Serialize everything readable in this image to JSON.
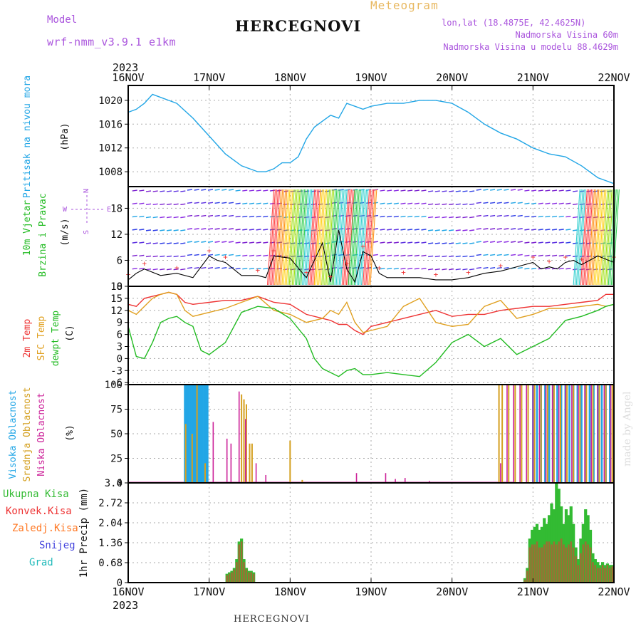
{
  "header": {
    "model_label": "Model",
    "model_name": "wrf-nmm_v3.9.1  e1km",
    "title": "HERCEGNOVI",
    "product": "Meteogram",
    "coords": "lon,lat (18.4875E, 42.4625N)",
    "altitude": "Nadmorska Visina 60m",
    "model_altitude": "Nadmorska Visina u modelu 88.4629m"
  },
  "footer": {
    "station": "HERCEGNOVI",
    "credit": "made by Angel"
  },
  "colors": {
    "pressure": "#22a6e6",
    "temp2m": "#ee3333",
    "sfc": "#e0a020",
    "dewpt": "#22bb22",
    "cloud_high": "#22a6e6",
    "cloud_mid": "#d4a020",
    "cloud_low": "#cc2299",
    "precip_total": "#33bb33",
    "precip_conv": "#ee3333",
    "precip_frozen": "#ff7722",
    "snow": "#4444dd",
    "graupel": "#22bbbb",
    "model": "#aa55dd",
    "meteogram": "#e8b860"
  },
  "chart_data": [
    {
      "type": "line",
      "panel": "pressure",
      "ylabel": [
        "Pritisak na nivou mora",
        "(hPa)"
      ],
      "yticks": [
        1008,
        1012,
        1016,
        1020
      ],
      "ylim": [
        1005.5,
        1022.5
      ],
      "x_ticks": [
        "16NOV",
        "17NOV",
        "18NOV",
        "19NOV",
        "20NOV",
        "21NOV",
        "22NOV"
      ],
      "top_year": "2023",
      "series": [
        {
          "x": [
            0,
            0.1,
            0.2,
            0.3,
            0.4,
            0.5,
            0.6,
            0.8,
            1.0,
            1.2,
            1.4,
            1.6,
            1.7,
            1.8,
            1.9,
            2.0,
            2.1,
            2.2,
            2.3,
            2.4,
            2.5,
            2.6,
            2.7,
            2.8,
            2.9,
            3.0,
            3.2,
            3.4,
            3.6,
            3.8,
            4.0,
            4.2,
            4.4,
            4.6,
            4.8,
            5.0,
            5.2,
            5.4,
            5.6,
            5.8,
            6.0
          ],
          "y": [
            1018,
            1018.5,
            1019.5,
            1021,
            1020.5,
            1020,
            1019.5,
            1017,
            1014,
            1011,
            1009,
            1008,
            1008,
            1008.5,
            1009.5,
            1009.5,
            1010.5,
            1013.5,
            1015.5,
            1016.5,
            1017.5,
            1017,
            1019.5,
            1019,
            1018.5,
            1019,
            1019.5,
            1019.5,
            1020,
            1020,
            1019.5,
            1018,
            1016,
            1014.5,
            1013.5,
            1012,
            1011,
            1010.5,
            1009,
            1007,
            1006
          ]
        }
      ]
    },
    {
      "type": "line",
      "panel": "wind",
      "ylabel": [
        "10m Vjetar",
        "Brzina i Pravac",
        "(m/s)"
      ],
      "compass": [
        "N",
        "W",
        "E",
        "S"
      ],
      "yticks": [
        0,
        6,
        12,
        18
      ],
      "ylim": [
        0,
        23
      ],
      "series": [
        {
          "name": "speed",
          "x": [
            0,
            0.1,
            0.2,
            0.4,
            0.6,
            0.8,
            1.0,
            1.1,
            1.2,
            1.4,
            1.6,
            1.7,
            1.8,
            2.0,
            2.2,
            2.4,
            2.5,
            2.6,
            2.7,
            2.8,
            2.9,
            3.0,
            3.1,
            3.2,
            3.4,
            3.6,
            3.8,
            4.0,
            4.2,
            4.4,
            4.6,
            4.8,
            5.0,
            5.1,
            5.2,
            5.3,
            5.4,
            5.5,
            5.6,
            5.8,
            6.0
          ],
          "y": [
            1.5,
            3,
            4,
            2.5,
            3,
            2,
            7,
            6,
            5.5,
            2.5,
            2.5,
            2,
            7,
            6.5,
            2,
            10,
            1,
            13,
            4,
            1,
            8,
            7,
            3,
            2,
            2,
            2,
            1.5,
            1.5,
            2,
            3,
            3.5,
            4.5,
            5.5,
            4,
            4.5,
            4,
            5.5,
            6,
            5,
            7,
            5.5
          ]
        }
      ]
    },
    {
      "type": "line",
      "panel": "temperature",
      "ylabel": [
        "2m Temp",
        "SFC Temp",
        "dewpt Temp",
        "(C)"
      ],
      "yticks": [
        -6,
        -3,
        0,
        3,
        6,
        9,
        12,
        15,
        18
      ],
      "ylim": [
        -6.5,
        18
      ],
      "series": [
        {
          "name": "2m Temp",
          "x": [
            0,
            0.1,
            0.2,
            0.3,
            0.4,
            0.5,
            0.6,
            0.7,
            0.8,
            1.0,
            1.2,
            1.4,
            1.6,
            1.8,
            2.0,
            2.2,
            2.4,
            2.5,
            2.6,
            2.7,
            2.8,
            2.9,
            3.0,
            3.2,
            3.4,
            3.6,
            3.8,
            4.0,
            4.2,
            4.4,
            4.6,
            4.8,
            5.0,
            5.2,
            5.4,
            5.6,
            5.8,
            5.9,
            6.0
          ],
          "y": [
            13.5,
            13,
            15,
            15.5,
            16,
            16.5,
            16,
            14,
            13.5,
            14,
            14.5,
            14.5,
            15.5,
            14,
            13.5,
            11,
            10,
            9.5,
            8.5,
            8.5,
            7,
            6,
            8,
            9,
            10,
            11,
            12,
            10.5,
            11,
            11,
            12,
            12.5,
            13,
            13,
            13.5,
            14,
            14.5,
            16,
            16
          ]
        },
        {
          "name": "SFC Temp",
          "x": [
            0,
            0.1,
            0.2,
            0.3,
            0.4,
            0.5,
            0.6,
            0.7,
            0.8,
            1.0,
            1.2,
            1.4,
            1.6,
            1.8,
            2.0,
            2.2,
            2.4,
            2.5,
            2.6,
            2.7,
            2.8,
            2.9,
            3.0,
            3.2,
            3.4,
            3.6,
            3.8,
            4.0,
            4.2,
            4.4,
            4.6,
            4.8,
            5.0,
            5.2,
            5.4,
            5.6,
            5.8,
            5.9,
            6.0
          ],
          "y": [
            12,
            11,
            13,
            15,
            16,
            16.5,
            16,
            12,
            10.5,
            11.5,
            12.5,
            14,
            15.5,
            12,
            11,
            9,
            10,
            12,
            11,
            14,
            9,
            6.5,
            7,
            8,
            13,
            15,
            9,
            8,
            8.5,
            13,
            14.5,
            10,
            11,
            12.5,
            12.5,
            13,
            13.5,
            13,
            13.5
          ]
        },
        {
          "name": "dewpt Temp",
          "x": [
            0,
            0.1,
            0.2,
            0.3,
            0.4,
            0.5,
            0.6,
            0.7,
            0.8,
            0.9,
            1.0,
            1.2,
            1.4,
            1.6,
            1.8,
            2.0,
            2.2,
            2.3,
            2.4,
            2.5,
            2.6,
            2.7,
            2.8,
            2.9,
            3.0,
            3.2,
            3.4,
            3.6,
            3.8,
            4.0,
            4.2,
            4.4,
            4.6,
            4.8,
            5.0,
            5.2,
            5.4,
            5.6,
            5.8,
            5.9,
            6.0
          ],
          "y": [
            8,
            0.5,
            0,
            4,
            9,
            10,
            10.5,
            9,
            8,
            2,
            1,
            4,
            11.5,
            13,
            12.5,
            10,
            5,
            0,
            -2.5,
            -3.5,
            -4.5,
            -3,
            -2.5,
            -4,
            -4,
            -3.5,
            -4,
            -4.5,
            -1,
            4,
            6,
            3,
            5,
            1,
            3,
            5,
            9.5,
            10.5,
            12,
            13,
            13.5
          ]
        }
      ]
    },
    {
      "type": "bar",
      "panel": "clouds",
      "ylabel": [
        "Visoka Oblacnost",
        "Srednja Oblacnost",
        "Niska Oblacnost",
        "(%)"
      ],
      "yticks": [
        0,
        25,
        50,
        75,
        100
      ],
      "ylim": [
        0,
        100
      ],
      "series": [
        {
          "name": "Visoka Oblacnost",
          "x": [
            0.7,
            0.72,
            0.74,
            0.76,
            0.78,
            0.8,
            0.82,
            0.84,
            0.86,
            0.88,
            0.9,
            0.92,
            0.94,
            0.96,
            0.98,
            5.0,
            5.05,
            5.1,
            5.15,
            5.2,
            5.25,
            5.3,
            5.35,
            5.4,
            5.45,
            5.5,
            5.55,
            5.6,
            5.65,
            5.7,
            5.75,
            5.8,
            5.85,
            5.9,
            5.95
          ],
          "y": [
            100,
            100,
            100,
            100,
            100,
            100,
            100,
            100,
            100,
            100,
            100,
            100,
            100,
            100,
            100,
            100,
            100,
            100,
            100,
            100,
            100,
            100,
            100,
            100,
            100,
            100,
            100,
            100,
            100,
            100,
            100,
            100,
            100,
            100,
            100
          ]
        },
        {
          "name": "Srednja Oblacnost",
          "x": [
            0.71,
            0.79,
            0.85,
            0.95,
            1.4,
            1.43,
            1.46,
            1.5,
            1.53,
            2.0,
            2.15,
            4.58,
            4.62,
            4.7,
            4.78,
            4.86,
            4.94,
            5.02,
            5.1,
            5.18,
            5.26,
            5.34,
            5.42,
            5.5,
            5.58,
            5.66,
            5.74,
            5.82,
            5.9,
            5.98
          ],
          "y": [
            60,
            50,
            100,
            20,
            90,
            85,
            80,
            40,
            40,
            43,
            3,
            100,
            100,
            100,
            100,
            100,
            100,
            100,
            100,
            100,
            100,
            100,
            100,
            100,
            100,
            100,
            100,
            100,
            100,
            100
          ]
        },
        {
          "name": "Niska Oblacnost",
          "x": [
            1.05,
            1.22,
            1.27,
            1.37,
            1.45,
            1.58,
            1.7,
            2.82,
            3.18,
            3.3,
            3.42,
            3.72,
            4.6,
            4.68,
            4.76,
            4.84,
            4.92,
            5.0,
            5.08,
            5.16,
            5.24,
            5.32,
            5.4,
            5.48,
            5.56,
            5.64,
            5.72,
            5.8,
            5.88,
            5.96
          ],
          "y": [
            62,
            45,
            40,
            93,
            65,
            20,
            8,
            10,
            10,
            4,
            5,
            2,
            20,
            100,
            100,
            100,
            100,
            100,
            100,
            100,
            100,
            100,
            100,
            100,
            100,
            100,
            100,
            100,
            100,
            100
          ]
        }
      ]
    },
    {
      "type": "bar",
      "panel": "precip",
      "ylabel": "1hr Precip (mm)",
      "legend": [
        "Ukupna Kisa",
        "Konvek.Kisa",
        "Zaledj.Kisa",
        "Snijeg",
        "Grad"
      ],
      "yticks": [
        "0",
        "0.68",
        "1.36",
        "2.04",
        "2.72",
        "3.4"
      ],
      "ylim": [
        0,
        3.4
      ],
      "x_ticks": [
        "16NOV",
        "17NOV",
        "18NOV",
        "19NOV",
        "20NOV",
        "21NOV",
        "22NOV"
      ],
      "bottom_year": "2023",
      "series": [
        {
          "name": "Ukupna Kisa",
          "x": [
            1.22,
            1.25,
            1.28,
            1.31,
            1.34,
            1.37,
            1.4,
            1.43,
            1.46,
            1.49,
            1.52,
            1.55,
            4.9,
            4.93,
            4.96,
            4.99,
            5.02,
            5.05,
            5.08,
            5.11,
            5.14,
            5.17,
            5.2,
            5.23,
            5.26,
            5.29,
            5.32,
            5.35,
            5.38,
            5.41,
            5.44,
            5.47,
            5.5,
            5.53,
            5.56,
            5.59,
            5.62,
            5.65,
            5.68,
            5.71,
            5.74,
            5.77,
            5.8,
            5.83,
            5.86,
            5.89,
            5.92,
            5.95,
            5.98
          ],
          "y": [
            0.3,
            0.35,
            0.4,
            0.5,
            0.8,
            1.4,
            1.5,
            0.8,
            0.5,
            0.4,
            0.4,
            0.35,
            0.15,
            0.5,
            1.5,
            1.8,
            1.9,
            2.0,
            1.8,
            1.9,
            2.2,
            2.0,
            2.3,
            2.7,
            2.5,
            3.4,
            3.2,
            2.6,
            2.0,
            2.5,
            2.3,
            2.6,
            2.0,
            1.2,
            0.8,
            1.5,
            2.0,
            2.5,
            2.3,
            1.8,
            1.0,
            0.8,
            0.7,
            0.6,
            0.7,
            0.6,
            0.65,
            0.6,
            0.6
          ]
        },
        {
          "name": "Konvek.Kisa",
          "x": [
            1.22,
            1.25,
            1.28,
            1.31,
            1.34,
            1.37,
            1.4,
            1.43,
            1.46,
            1.49,
            1.52,
            1.55,
            4.9,
            4.93,
            4.96,
            4.99,
            5.02,
            5.05,
            5.08,
            5.11,
            5.14,
            5.17,
            5.2,
            5.23,
            5.26,
            5.29,
            5.32,
            5.35,
            5.38,
            5.41,
            5.44,
            5.47,
            5.5,
            5.53,
            5.56,
            5.59,
            5.62,
            5.65,
            5.68,
            5.71,
            5.74,
            5.77,
            5.8,
            5.83,
            5.86,
            5.89,
            5.92,
            5.95,
            5.98
          ],
          "y": [
            0.25,
            0.3,
            0.35,
            0.45,
            0.7,
            1.3,
            1.4,
            0.7,
            0.45,
            0.35,
            0.35,
            0.3,
            0.1,
            0.4,
            1.2,
            1.3,
            1.3,
            1.4,
            1.2,
            1.2,
            1.3,
            1.4,
            1.4,
            1.3,
            1.4,
            1.3,
            1.4,
            1.5,
            1.3,
            1.2,
            1.3,
            1.4,
            1.2,
            0.9,
            0.6,
            1.0,
            1.3,
            1.4,
            1.3,
            1.2,
            0.7,
            0.6,
            0.5,
            0.5,
            0.6,
            0.5,
            0.6,
            0.5,
            0.55
          ]
        }
      ]
    }
  ]
}
